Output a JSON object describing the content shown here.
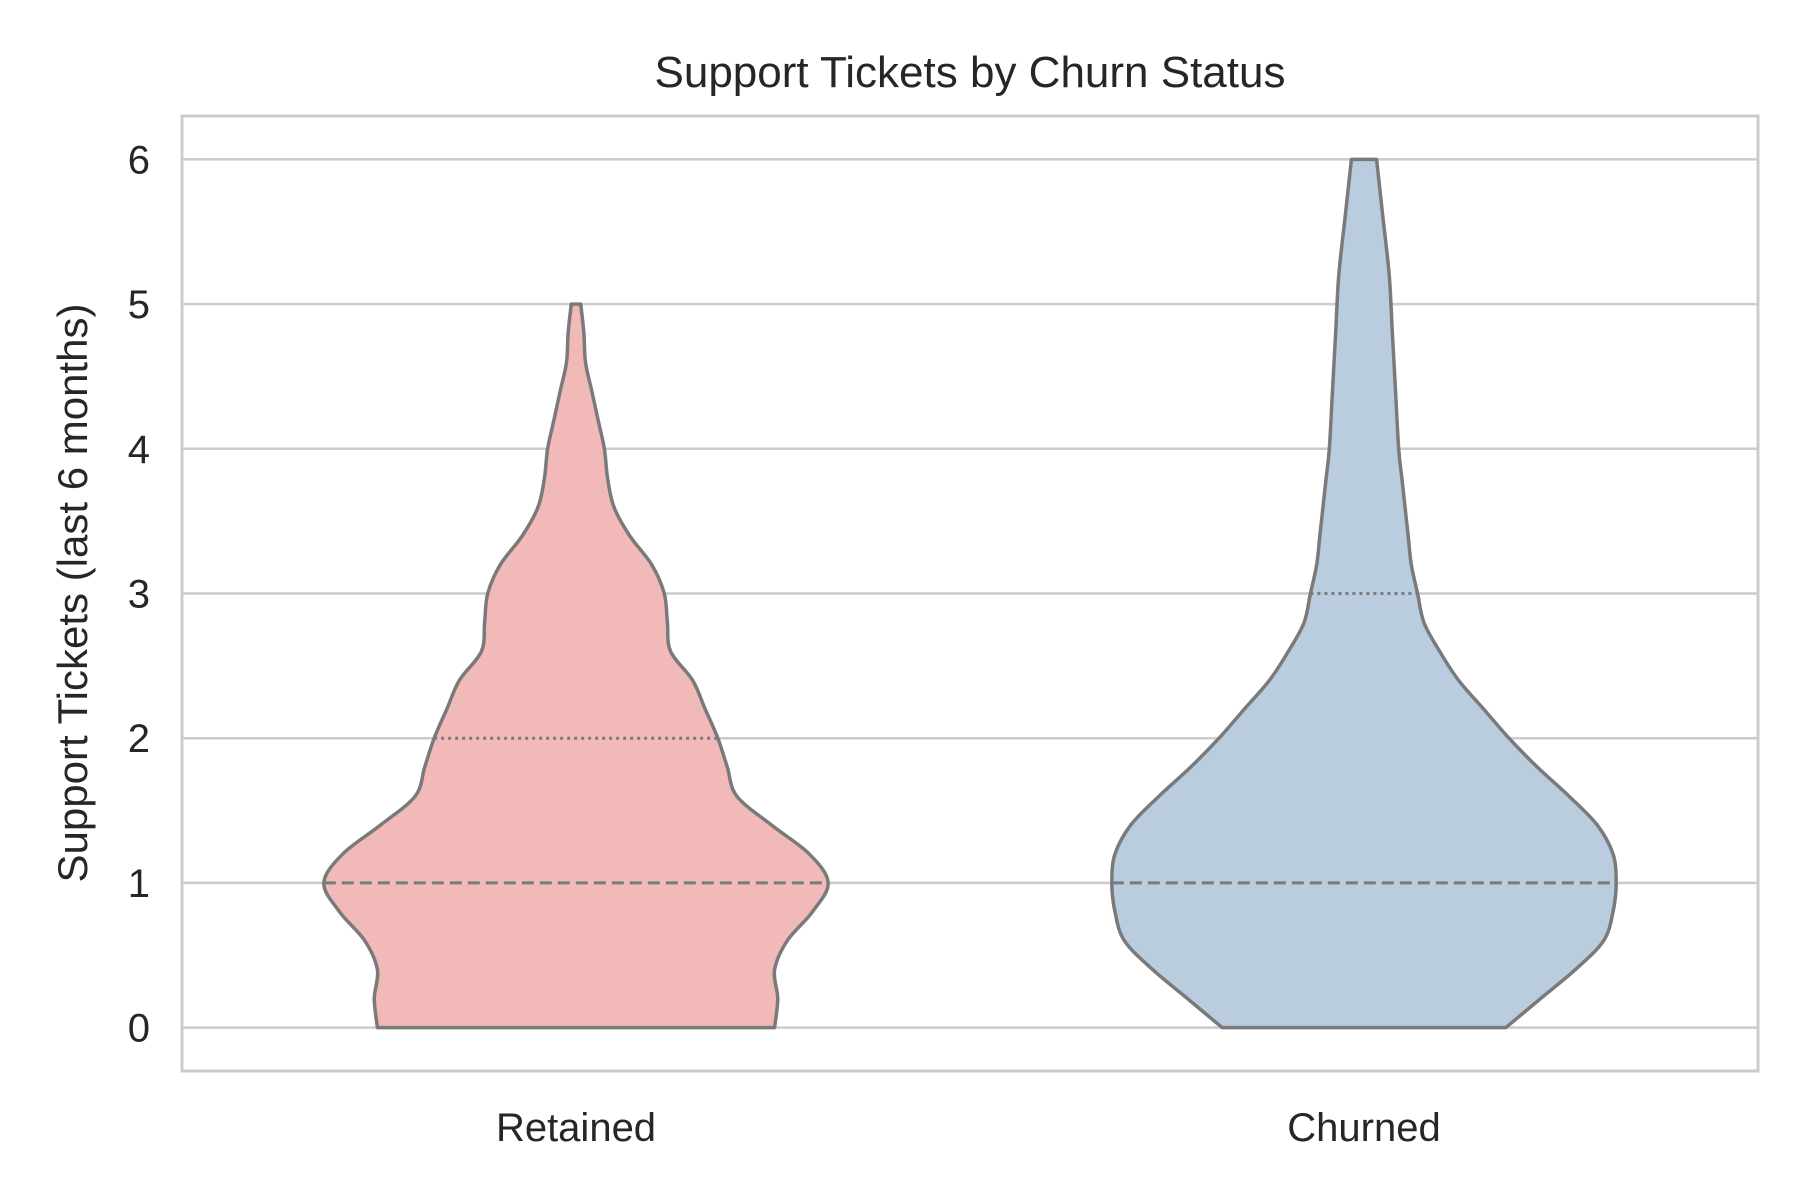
{
  "chart_data": {
    "type": "violin",
    "title": "Support Tickets by Churn Status",
    "xlabel": "",
    "ylabel": "Support Tickets (last 6 months)",
    "categories": [
      "Retained",
      "Churned"
    ],
    "yticks": [
      "0",
      "1",
      "2",
      "3",
      "4",
      "5",
      "6"
    ],
    "ylim": [
      -0.3,
      6.3
    ],
    "grid": "horizontal",
    "violins": [
      {
        "category": "Retained",
        "color": "#f1bab8",
        "min": 0,
        "max": 5,
        "median": 1,
        "q1": 1,
        "q3": 2,
        "profile": [
          [
            0,
            0.63
          ],
          [
            0.2,
            0.64
          ],
          [
            0.4,
            0.63
          ],
          [
            0.6,
            0.67
          ],
          [
            0.8,
            0.75
          ],
          [
            1.0,
            0.8
          ],
          [
            1.2,
            0.74
          ],
          [
            1.4,
            0.62
          ],
          [
            1.6,
            0.51
          ],
          [
            1.8,
            0.48
          ],
          [
            2.0,
            0.45
          ],
          [
            2.2,
            0.41
          ],
          [
            2.4,
            0.37
          ],
          [
            2.6,
            0.3
          ],
          [
            2.8,
            0.29
          ],
          [
            3.0,
            0.28
          ],
          [
            3.2,
            0.24
          ],
          [
            3.4,
            0.17
          ],
          [
            3.6,
            0.12
          ],
          [
            3.8,
            0.1
          ],
          [
            4.0,
            0.09
          ],
          [
            4.2,
            0.07
          ],
          [
            4.4,
            0.05
          ],
          [
            4.6,
            0.03
          ],
          [
            4.8,
            0.025
          ],
          [
            5.0,
            0.015
          ]
        ]
      },
      {
        "category": "Churned",
        "color": "#b9cddf",
        "min": 0,
        "max": 6,
        "median": 1,
        "q1": 1,
        "q3": 3,
        "profile": [
          [
            0,
            0.45
          ],
          [
            0.2,
            0.56
          ],
          [
            0.4,
            0.67
          ],
          [
            0.6,
            0.76
          ],
          [
            0.8,
            0.79
          ],
          [
            1.0,
            0.8
          ],
          [
            1.2,
            0.79
          ],
          [
            1.4,
            0.74
          ],
          [
            1.6,
            0.65
          ],
          [
            1.8,
            0.55
          ],
          [
            2.0,
            0.46
          ],
          [
            2.2,
            0.38
          ],
          [
            2.4,
            0.3
          ],
          [
            2.6,
            0.24
          ],
          [
            2.8,
            0.19
          ],
          [
            3.0,
            0.17
          ],
          [
            3.2,
            0.15
          ],
          [
            3.4,
            0.14
          ],
          [
            3.6,
            0.13
          ],
          [
            3.8,
            0.12
          ],
          [
            4.0,
            0.11
          ],
          [
            4.4,
            0.1
          ],
          [
            4.8,
            0.09
          ],
          [
            5.2,
            0.08
          ],
          [
            5.6,
            0.06
          ],
          [
            6.0,
            0.04
          ]
        ]
      }
    ],
    "colors": {
      "outline": "#7a7a7a",
      "grid": "#cccccc",
      "text": "#262626"
    }
  }
}
